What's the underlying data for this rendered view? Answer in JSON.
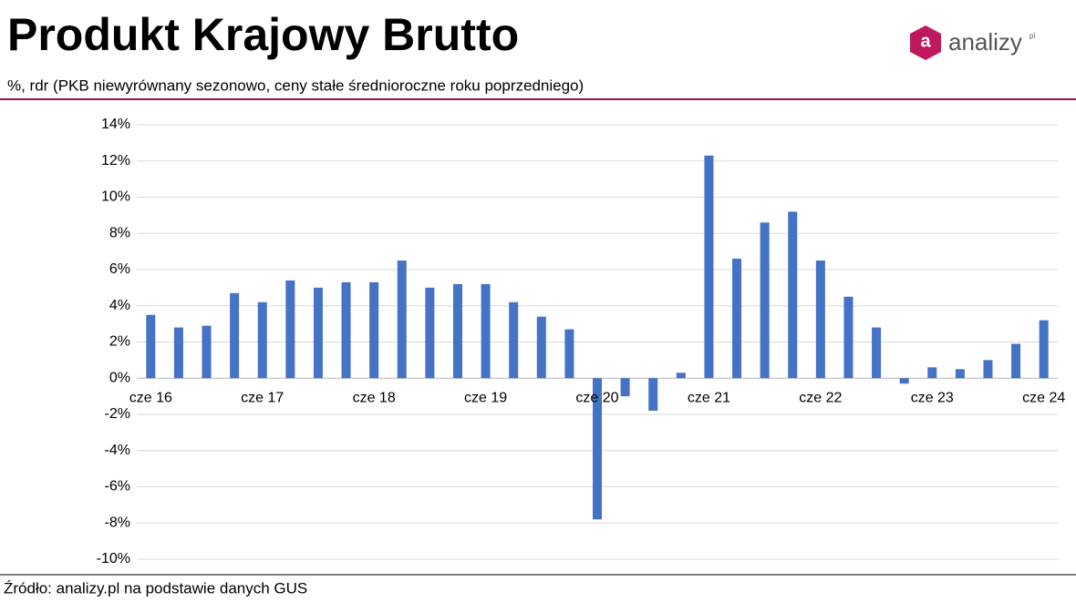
{
  "chart_data": {
    "type": "bar",
    "title": "Produkt Krajowy Brutto",
    "subtitle": "%, rdr (PKB niewyrównany sezonowo, ceny stałe średnioroczne roku poprzedniego)",
    "source": "Źródło: analizy.pl na podstawie danych GUS",
    "categories": [
      "cze 16",
      null,
      null,
      null,
      "cze 17",
      null,
      null,
      null,
      "cze 18",
      null,
      null,
      null,
      "cze 19",
      null,
      null,
      null,
      "cze 20",
      null,
      null,
      null,
      "cze 21",
      null,
      null,
      null,
      "cze 22",
      null,
      null,
      null,
      "cze 23",
      null,
      null,
      null,
      "cze 24"
    ],
    "values": [
      3.5,
      2.8,
      2.9,
      4.7,
      4.2,
      5.4,
      5.0,
      5.3,
      5.3,
      6.5,
      5.0,
      5.2,
      5.2,
      4.2,
      3.4,
      2.7,
      -7.8,
      -1.0,
      -1.8,
      0.3,
      12.3,
      6.6,
      8.6,
      9.2,
      6.5,
      4.5,
      2.8,
      -0.3,
      0.6,
      0.5,
      1.0,
      1.9,
      3.2
    ],
    "color": "#4472c4",
    "ylim": [
      -10,
      14
    ],
    "yticks": [
      {
        "value": -10,
        "label": "-10%"
      },
      {
        "value": -8,
        "label": "-8%"
      },
      {
        "value": -6,
        "label": "-6%"
      },
      {
        "value": -4,
        "label": "-4%"
      },
      {
        "value": -2,
        "label": "-2%"
      },
      {
        "value": 0,
        "label": "0%"
      },
      {
        "value": 2,
        "label": "2%"
      },
      {
        "value": 4,
        "label": "4%"
      },
      {
        "value": 6,
        "label": "6%"
      },
      {
        "value": 8,
        "label": "8%"
      },
      {
        "value": 10,
        "label": "10%"
      },
      {
        "value": 12,
        "label": "12%"
      },
      {
        "value": 14,
        "label": "14%"
      }
    ],
    "grid": true
  },
  "logo": {
    "icon": "a",
    "text": "analizy",
    "suffix": "pl"
  }
}
